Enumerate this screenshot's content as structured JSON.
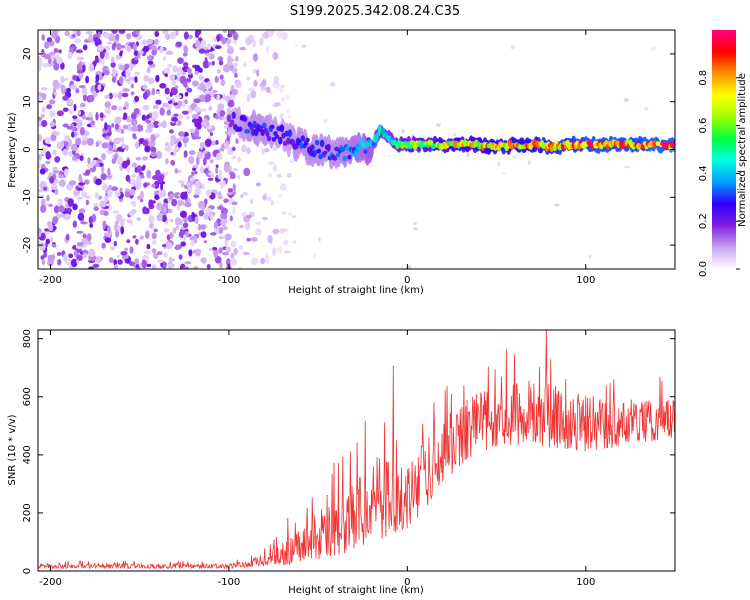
{
  "title": "S199.2025.342.08.24.C35",
  "chart_data": [
    {
      "type": "heatmap",
      "xlabel": "Height of straight line (km)",
      "ylabel": "Frequency (Hz)",
      "xlim": [
        -207,
        150
      ],
      "ylim": [
        -25,
        25
      ],
      "x_ticks": [
        -200,
        -100,
        0,
        100
      ],
      "x_tick_labels": [
        "-200",
        "-100",
        "0",
        "100"
      ],
      "y_ticks": [
        20,
        10,
        0,
        -10,
        -20
      ],
      "y_tick_labels": [
        "20",
        "10",
        "0",
        "-10",
        "-20"
      ],
      "colorbar": {
        "label": "Normalized spectral amplitude",
        "range": [
          0,
          1
        ],
        "ticks": [
          0.0,
          0.2,
          0.4,
          0.6,
          0.8
        ],
        "tick_labels": [
          "0.0",
          "0.2",
          "0.4",
          "0.6",
          "0.8"
        ],
        "colors": [
          "#ffffff",
          "#c8a0f0",
          "#8020e0",
          "#3000ff",
          "#00a0ff",
          "#00ffe0",
          "#00ff40",
          "#a0ff00",
          "#ffff00",
          "#ff9000",
          "#ff0000",
          "#ff0080"
        ]
      },
      "dominant_frequency_track": {
        "x": [
          -100,
          -90,
          -80,
          -70,
          -60,
          -50,
          -40,
          -30,
          -20,
          -15,
          -10,
          -5,
          0,
          10,
          20,
          30,
          40,
          50,
          60,
          70,
          80,
          90,
          100,
          110,
          120,
          130,
          140,
          150
        ],
        "frequency": [
          6,
          5,
          4,
          3,
          1,
          0,
          -1,
          0,
          1,
          4,
          2,
          1,
          1,
          1,
          1,
          1,
          1,
          0.5,
          1,
          1,
          0.5,
          1,
          1,
          1,
          1,
          1,
          1,
          1
        ],
        "amplitude": [
          0.2,
          0.3,
          0.3,
          0.25,
          0.3,
          0.3,
          0.3,
          0.35,
          0.4,
          0.5,
          0.5,
          0.55,
          0.6,
          0.65,
          0.7,
          0.75,
          0.75,
          0.8,
          0.8,
          0.8,
          0.85,
          0.85,
          0.9,
          0.9,
          0.9,
          0.9,
          0.95,
          0.95
        ]
      },
      "noise_region": {
        "x_range": [
          -207,
          -95
        ],
        "amplitude_range": [
          0.02,
          0.2
        ]
      }
    },
    {
      "type": "line",
      "xlabel": "Height of straight line (km)",
      "ylabel": "SNR (10 * v/v)",
      "xlim": [
        -207,
        150
      ],
      "ylim": [
        0,
        830
      ],
      "x_ticks": [
        -200,
        -100,
        0,
        100
      ],
      "x_tick_labels": [
        "-200",
        "-100",
        "0",
        "100"
      ],
      "y_ticks": [
        0,
        200,
        400,
        600,
        800
      ],
      "y_tick_labels": [
        "0",
        "200",
        "400",
        "600",
        "800"
      ],
      "color": "#ee3333",
      "series": [
        {
          "name": "SNR",
          "x": [
            -207,
            -180,
            -150,
            -120,
            -100,
            -90,
            -80,
            -70,
            -60,
            -50,
            -40,
            -30,
            -20,
            -10,
            0,
            10,
            20,
            30,
            40,
            50,
            60,
            70,
            80,
            90,
            100,
            110,
            120,
            130,
            140,
            150
          ],
          "baseline": [
            15,
            15,
            15,
            15,
            15,
            20,
            30,
            50,
            70,
            100,
            130,
            160,
            200,
            220,
            230,
            300,
            380,
            440,
            480,
            500,
            510,
            510,
            500,
            490,
            480,
            480,
            490,
            500,
            500,
            510
          ],
          "spread": [
            15,
            15,
            15,
            15,
            15,
            20,
            40,
            80,
            100,
            150,
            200,
            220,
            250,
            250,
            230,
            220,
            200,
            190,
            180,
            180,
            190,
            200,
            200,
            180,
            170,
            160,
            150,
            140,
            130,
            120
          ]
        }
      ],
      "peaks": [
        {
          "x": -67,
          "y": 180
        },
        {
          "x": -45,
          "y": 260
        },
        {
          "x": -28,
          "y": 440
        },
        {
          "x": -8,
          "y": 705
        },
        {
          "x": 78,
          "y": 830
        }
      ]
    }
  ]
}
